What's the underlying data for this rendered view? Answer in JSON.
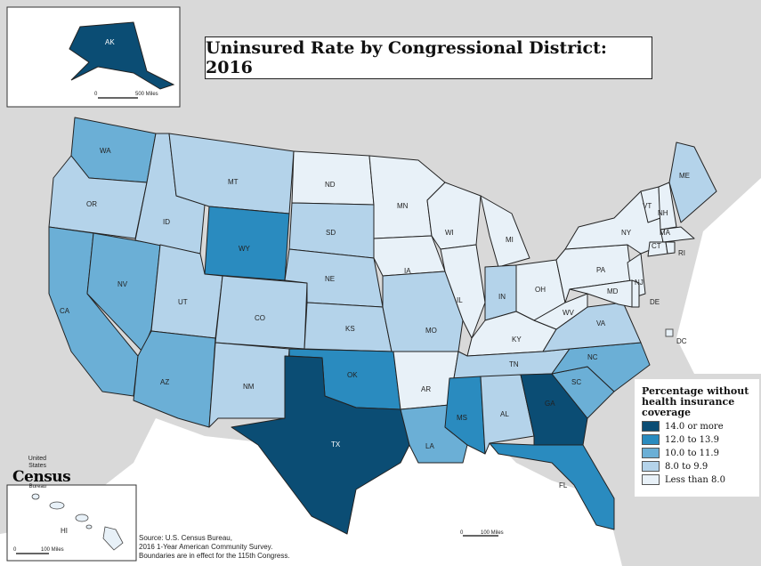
{
  "title": "Uninsured Rate by Congressional District: 2016",
  "legend": {
    "title": "Percentage without\nhealth insurance\ncoverage",
    "items": [
      {
        "label": "14.0 or more",
        "color": "#0b4d74"
      },
      {
        "label": "12.0 to 13.9",
        "color": "#2a8bbf"
      },
      {
        "label": "10.0 to 11.9",
        "color": "#6bafd6"
      },
      {
        "label": "8.0 to 9.9",
        "color": "#b4d3ea"
      },
      {
        "label": "Less than 8.0",
        "color": "#e8f1f8"
      }
    ]
  },
  "states": {
    "WA": {
      "label": "WA",
      "class": "10.0 to 11.9"
    },
    "OR": {
      "label": "OR",
      "class": "8.0 to 9.9"
    },
    "CA": {
      "label": "CA",
      "class": "10.0 to 11.9"
    },
    "NV": {
      "label": "NV",
      "class": "10.0 to 11.9"
    },
    "ID": {
      "label": "ID",
      "class": "8.0 to 9.9"
    },
    "MT": {
      "label": "MT",
      "class": "8.0 to 9.9"
    },
    "WY": {
      "label": "WY",
      "class": "12.0 to 13.9"
    },
    "UT": {
      "label": "UT",
      "class": "8.0 to 9.9"
    },
    "CO": {
      "label": "CO",
      "class": "8.0 to 9.9"
    },
    "AZ": {
      "label": "AZ",
      "class": "10.0 to 11.9"
    },
    "NM": {
      "label": "NM",
      "class": "8.0 to 9.9"
    },
    "ND": {
      "label": "ND",
      "class": "Less than 8.0"
    },
    "SD": {
      "label": "SD",
      "class": "8.0 to 9.9"
    },
    "NE": {
      "label": "NE",
      "class": "8.0 to 9.9"
    },
    "KS": {
      "label": "KS",
      "class": "8.0 to 9.9"
    },
    "OK": {
      "label": "OK",
      "class": "12.0 to 13.9"
    },
    "TX": {
      "label": "TX",
      "class": "14.0 or more"
    },
    "MN": {
      "label": "MN",
      "class": "Less than 8.0"
    },
    "IA": {
      "label": "IA",
      "class": "Less than 8.0"
    },
    "MO": {
      "label": "MO",
      "class": "8.0 to 9.9"
    },
    "AR": {
      "label": "AR",
      "class": "Less than 8.0"
    },
    "LA": {
      "label": "LA",
      "class": "10.0 to 11.9"
    },
    "WI": {
      "label": "WI",
      "class": "Less than 8.0"
    },
    "IL": {
      "label": "IL",
      "class": "Less than 8.0"
    },
    "MI": {
      "label": "MI",
      "class": "Less than 8.0"
    },
    "IN": {
      "label": "IN",
      "class": "8.0 to 9.9"
    },
    "OH": {
      "label": "OH",
      "class": "Less than 8.0"
    },
    "KY": {
      "label": "KY",
      "class": "Less than 8.0"
    },
    "TN": {
      "label": "TN",
      "class": "8.0 to 9.9"
    },
    "MS": {
      "label": "MS",
      "class": "12.0 to 13.9"
    },
    "AL": {
      "label": "AL",
      "class": "8.0 to 9.9"
    },
    "GA": {
      "label": "GA",
      "class": "14.0 or more"
    },
    "FL": {
      "label": "FL",
      "class": "12.0 to 13.9"
    },
    "SC": {
      "label": "SC",
      "class": "10.0 to 11.9"
    },
    "NC": {
      "label": "NC",
      "class": "10.0 to 11.9"
    },
    "VA": {
      "label": "VA",
      "class": "8.0 to 9.9"
    },
    "WV": {
      "label": "WV",
      "class": "Less than 8.0"
    },
    "PA": {
      "label": "PA",
      "class": "Less than 8.0"
    },
    "NY": {
      "label": "NY",
      "class": "Less than 8.0"
    },
    "ME": {
      "label": "ME",
      "class": "8.0 to 9.9"
    },
    "VT": {
      "label": "VT",
      "class": "Less than 8.0"
    },
    "NH": {
      "label": "NH",
      "class": "Less than 8.0"
    },
    "MA": {
      "label": "MA",
      "class": "Less than 8.0"
    },
    "CT": {
      "label": "CT",
      "class": "Less than 8.0"
    },
    "RI": {
      "label": "RI",
      "class": "Less than 8.0"
    },
    "NJ": {
      "label": "NJ",
      "class": "Less than 8.0"
    },
    "DE": {
      "label": "DE",
      "class": "Less than 8.0"
    },
    "MD": {
      "label": "MD",
      "class": "Less than 8.0"
    },
    "DC": {
      "label": "DC",
      "class": "Less than 8.0"
    },
    "AK": {
      "label": "AK",
      "class": "14.0 or more"
    },
    "HI": {
      "label": "HI",
      "class": "Less than 8.0"
    }
  },
  "scales": {
    "alaska": {
      "zero": "0",
      "label": "500 Miles"
    },
    "conus": {
      "zero": "0",
      "label": "100 Miles"
    },
    "hawaii": {
      "zero": "0",
      "label": "100 Miles"
    }
  },
  "source": {
    "line1": "Source: U.S. Census Bureau,",
    "line2": "2016 1-Year American Community Survey.",
    "line3": "Boundaries are in effect for the 115th Congress."
  },
  "logo": {
    "united_states": "United States",
    "census": "Census",
    "bureau": "Bureau"
  }
}
